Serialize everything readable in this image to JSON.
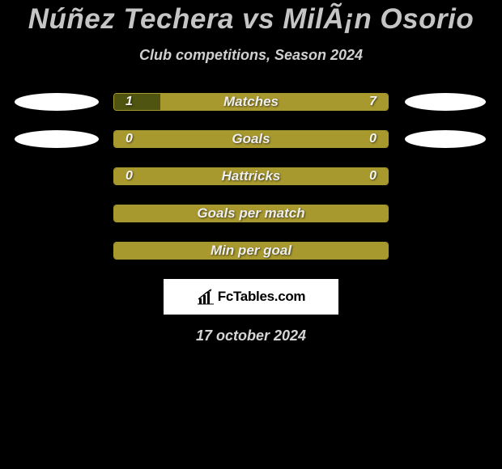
{
  "title": "Núñez Techera vs MilÃ¡n Osorio",
  "subtitle": "Club competitions, Season 2024",
  "date": "17 october 2024",
  "brand": "FcTables.com",
  "colors": {
    "background": "#000000",
    "bar_border": "#a8992f",
    "bar_fill_olive": "#a8992f",
    "bar_fill_dark": "#4f5510",
    "logo_fill": "#ffffff",
    "text_primary": "#c5c5c5",
    "text_value": "#f5f5f5"
  },
  "show_logos": [
    true,
    true,
    false,
    false,
    false
  ],
  "rows": [
    {
      "label": "Matches",
      "left_value": "1",
      "right_value": "7",
      "left_num": 1,
      "right_num": 7,
      "left_pct": 17,
      "right_pct": 83,
      "left_color": "#4f5510",
      "right_color": "#a8992f"
    },
    {
      "label": "Goals",
      "left_value": "0",
      "right_value": "0",
      "left_num": 0,
      "right_num": 0,
      "left_pct": 0,
      "right_pct": 100,
      "left_color": "#a8992f",
      "right_color": "#a8992f"
    },
    {
      "label": "Hattricks",
      "left_value": "0",
      "right_value": "0",
      "left_num": 0,
      "right_num": 0,
      "left_pct": 0,
      "right_pct": 100,
      "left_color": "#a8992f",
      "right_color": "#a8992f"
    },
    {
      "label": "Goals per match",
      "left_value": "",
      "right_value": "",
      "left_num": 0,
      "right_num": 0,
      "left_pct": 0,
      "right_pct": 100,
      "left_color": "#a8992f",
      "right_color": "#a8992f"
    },
    {
      "label": "Min per goal",
      "left_value": "",
      "right_value": "",
      "left_num": 0,
      "right_num": 0,
      "left_pct": 0,
      "right_pct": 100,
      "left_color": "#a8992f",
      "right_color": "#a8992f"
    }
  ]
}
